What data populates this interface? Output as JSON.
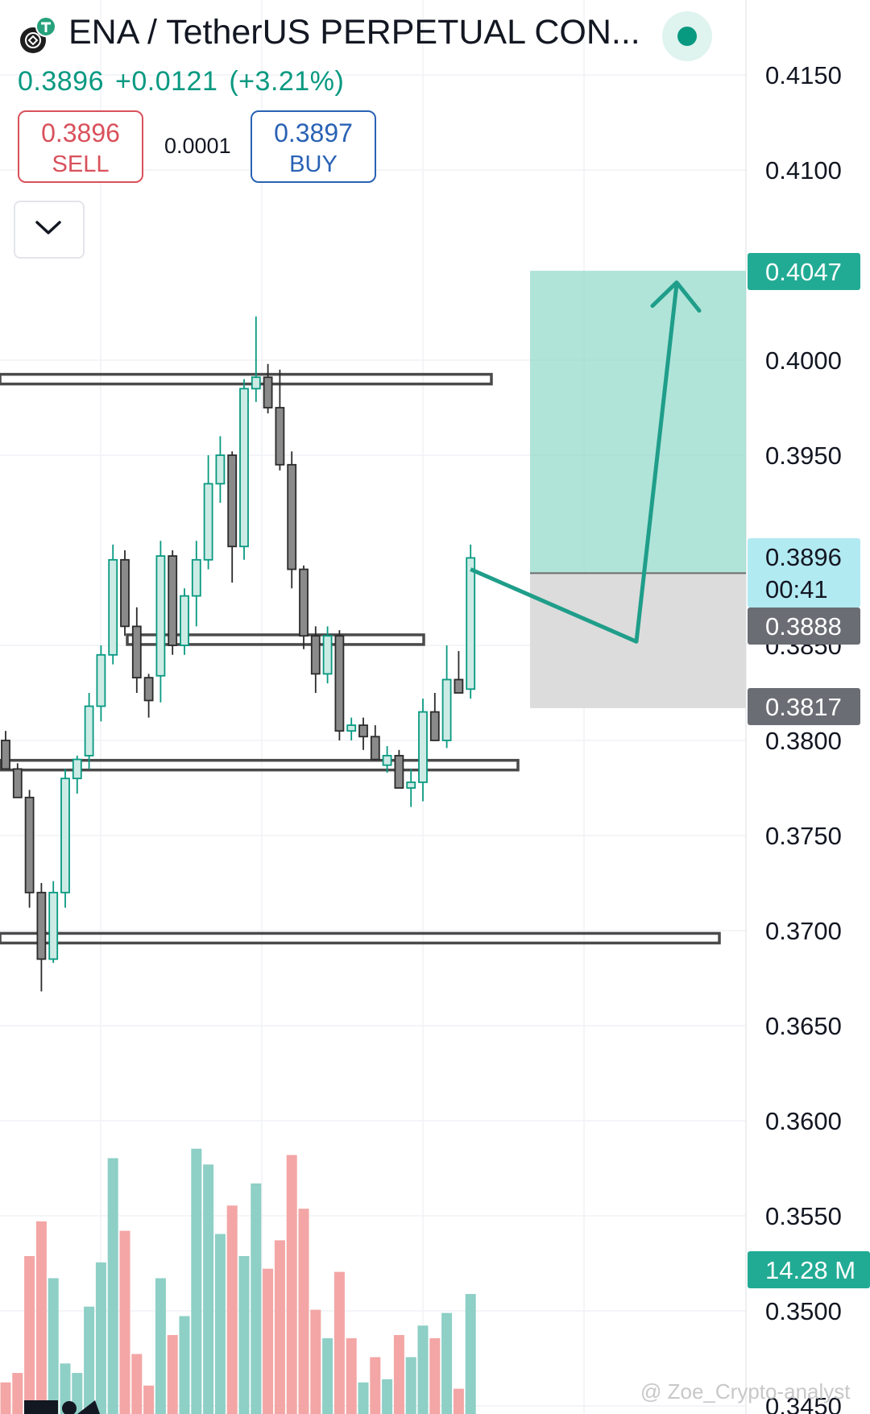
{
  "header": {
    "title": "ENA / TetherUS PERPETUAL CON...",
    "price": "0.3896",
    "change": "+0.0121",
    "change_pct": "(+3.21%)",
    "sell_price": "0.3896",
    "sell_label": "SELL",
    "spread": "0.0001",
    "buy_price": "0.3897",
    "buy_label": "BUY"
  },
  "badges": {
    "target": "0.4047",
    "current": "0.3896",
    "countdown": "00:41",
    "current_grey": "0.3888",
    "stop": "0.3817",
    "volume": "14.28 M"
  },
  "watermark": "@ Zoe_Crypto-analyst",
  "colors": {
    "up": "#089981",
    "up_fill": "#cdebe5",
    "down": "#d9515c",
    "vol_up": "#8ecfc6",
    "vol_down": "#f3a6a5",
    "grey": "#5d606b"
  },
  "chart_data": {
    "type": "candlestick",
    "y_axis_ticks": [
      "0.4150",
      "0.4100",
      "0.4000",
      "0.3950",
      "0.3850",
      "0.3800",
      "0.3750",
      "0.3700",
      "0.3650",
      "0.3600",
      "0.3550",
      "0.3500",
      "0.3450"
    ],
    "ylim": [
      0.345,
      0.416
    ],
    "candles": [
      {
        "o": 0.38,
        "h": 0.3805,
        "l": 0.3785,
        "c": 0.3785
      },
      {
        "o": 0.3785,
        "h": 0.3788,
        "l": 0.377,
        "c": 0.377
      },
      {
        "o": 0.377,
        "h": 0.3774,
        "l": 0.3712,
        "c": 0.372
      },
      {
        "o": 0.372,
        "h": 0.3725,
        "l": 0.3668,
        "c": 0.3685
      },
      {
        "o": 0.3685,
        "h": 0.3726,
        "l": 0.3683,
        "c": 0.372
      },
      {
        "o": 0.372,
        "h": 0.3785,
        "l": 0.3712,
        "c": 0.378
      },
      {
        "o": 0.378,
        "h": 0.3792,
        "l": 0.3772,
        "c": 0.379
      },
      {
        "o": 0.3792,
        "h": 0.3825,
        "l": 0.3785,
        "c": 0.3818
      },
      {
        "o": 0.3818,
        "h": 0.385,
        "l": 0.381,
        "c": 0.3845
      },
      {
        "o": 0.3845,
        "h": 0.3903,
        "l": 0.384,
        "c": 0.3895
      },
      {
        "o": 0.3895,
        "h": 0.39,
        "l": 0.3855,
        "c": 0.386
      },
      {
        "o": 0.386,
        "h": 0.387,
        "l": 0.3825,
        "c": 0.3833
      },
      {
        "o": 0.3833,
        "h": 0.3835,
        "l": 0.3812,
        "c": 0.3821
      },
      {
        "o": 0.3834,
        "h": 0.3905,
        "l": 0.382,
        "c": 0.3897
      },
      {
        "o": 0.3897,
        "h": 0.39,
        "l": 0.3845,
        "c": 0.385
      },
      {
        "o": 0.385,
        "h": 0.388,
        "l": 0.3845,
        "c": 0.3876
      },
      {
        "o": 0.3876,
        "h": 0.3905,
        "l": 0.386,
        "c": 0.3895
      },
      {
        "o": 0.3895,
        "h": 0.395,
        "l": 0.389,
        "c": 0.3935
      },
      {
        "o": 0.3935,
        "h": 0.396,
        "l": 0.3925,
        "c": 0.395
      },
      {
        "o": 0.395,
        "h": 0.3952,
        "l": 0.3883,
        "c": 0.3902
      },
      {
        "o": 0.3902,
        "h": 0.399,
        "l": 0.3895,
        "c": 0.3985
      },
      {
        "o": 0.3985,
        "h": 0.4023,
        "l": 0.3978,
        "c": 0.3991
      },
      {
        "o": 0.3991,
        "h": 0.3998,
        "l": 0.3972,
        "c": 0.3975
      },
      {
        "o": 0.3975,
        "h": 0.3995,
        "l": 0.3942,
        "c": 0.3945
      },
      {
        "o": 0.3945,
        "h": 0.3952,
        "l": 0.388,
        "c": 0.389
      },
      {
        "o": 0.389,
        "h": 0.3892,
        "l": 0.3848,
        "c": 0.3855
      },
      {
        "o": 0.3855,
        "h": 0.386,
        "l": 0.3825,
        "c": 0.3835
      },
      {
        "o": 0.3835,
        "h": 0.386,
        "l": 0.383,
        "c": 0.3855
      },
      {
        "o": 0.3855,
        "h": 0.3858,
        "l": 0.38,
        "c": 0.3805
      },
      {
        "o": 0.3805,
        "h": 0.3812,
        "l": 0.38,
        "c": 0.3808
      },
      {
        "o": 0.3808,
        "h": 0.3812,
        "l": 0.3795,
        "c": 0.3802
      },
      {
        "o": 0.3802,
        "h": 0.3808,
        "l": 0.379,
        "c": 0.379
      },
      {
        "o": 0.3787,
        "h": 0.3797,
        "l": 0.3783,
        "c": 0.3792
      },
      {
        "o": 0.3792,
        "h": 0.3795,
        "l": 0.3775,
        "c": 0.3775
      },
      {
        "o": 0.3775,
        "h": 0.3785,
        "l": 0.3765,
        "c": 0.3778
      },
      {
        "o": 0.3778,
        "h": 0.3822,
        "l": 0.3768,
        "c": 0.3815
      },
      {
        "o": 0.3815,
        "h": 0.3825,
        "l": 0.38,
        "c": 0.38
      },
      {
        "o": 0.38,
        "h": 0.385,
        "l": 0.3796,
        "c": 0.3832
      },
      {
        "o": 0.3832,
        "h": 0.3847,
        "l": 0.3825,
        "c": 0.3825
      },
      {
        "o": 0.3827,
        "h": 0.3903,
        "l": 0.3822,
        "c": 0.3896
      }
    ],
    "volume_up": [
      false,
      false,
      false,
      false,
      true,
      true,
      true,
      true,
      true,
      true,
      false,
      false,
      false,
      true,
      false,
      true,
      true,
      true,
      true,
      false,
      true,
      true,
      false,
      false,
      false,
      false,
      false,
      true,
      false,
      false,
      true,
      false,
      true,
      false,
      true,
      true,
      false,
      true,
      false,
      true
    ],
    "volume_rel": [
      0.1,
      0.13,
      0.5,
      0.61,
      0.43,
      0.16,
      0.13,
      0.34,
      0.48,
      0.81,
      0.58,
      0.19,
      0.09,
      0.43,
      0.25,
      0.31,
      0.84,
      0.79,
      0.57,
      0.66,
      0.5,
      0.73,
      0.46,
      0.55,
      0.82,
      0.65,
      0.33,
      0.24,
      0.45,
      0.24,
      0.1,
      0.18,
      0.11,
      0.25,
      0.18,
      0.28,
      0.24,
      0.32,
      0.08,
      0.38
    ],
    "levels": [
      0.399,
      0.3853,
      0.3787,
      0.3696
    ],
    "position": {
      "target": 0.4047,
      "entry": 0.3888,
      "stop": 0.3817
    },
    "projection": [
      {
        "x_candle": 39,
        "y": 0.389
      },
      {
        "x_candle": 47,
        "y": 0.3852
      },
      {
        "x_candle": 50,
        "y": 0.404
      }
    ]
  }
}
